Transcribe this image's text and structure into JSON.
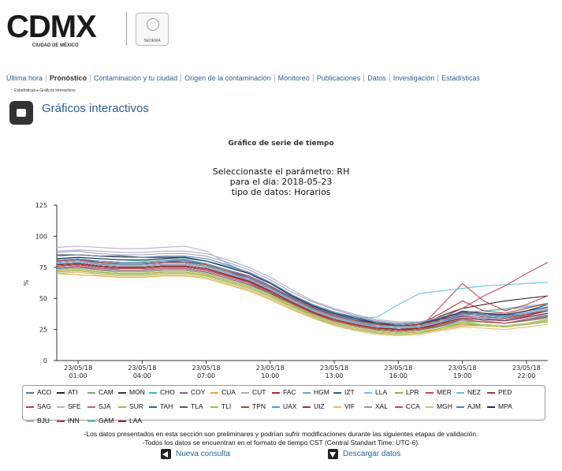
{
  "header": {
    "logo_bold": "CDMX",
    "logo_sub": "CIUDAD DE MÉXICO",
    "seal_label": "SEDEMA"
  },
  "nav": {
    "items": [
      "Última hora",
      "Pronóstico",
      "Contaminación y tu ciudad",
      "Origen de la contaminación",
      "Monitoreo",
      "Publicaciones",
      "Datos",
      "Investigación",
      "Estadísticas"
    ],
    "active_index": 1
  },
  "breadcrumb": ":: Estadísticas ▸ Gráficos interactivos",
  "page_title": "Gráficos interactivos",
  "subheading": "Gráfico de serie de tiempo",
  "chart_data": {
    "type": "line",
    "title_lines": [
      "Seleccionaste el parámetro: RH",
      "para el día: 2018-05-23",
      "tipo de datos: Horarios"
    ],
    "ylabel": "%",
    "ylim": [
      0,
      125
    ],
    "yticks": [
      0,
      25,
      50,
      75,
      100,
      125
    ],
    "xlim": [
      0,
      23
    ],
    "xticks": [
      {
        "hour": 1,
        "date": "23/05/18",
        "time": "01:00"
      },
      {
        "hour": 4,
        "date": "23/05/18",
        "time": "04:00"
      },
      {
        "hour": 7,
        "date": "23/05/18",
        "time": "07:00"
      },
      {
        "hour": 10,
        "date": "23/05/18",
        "time": "10:00"
      },
      {
        "hour": 13,
        "date": "23/05/18",
        "time": "13:00"
      },
      {
        "hour": 16,
        "date": "23/05/18",
        "time": "16:00"
      },
      {
        "hour": 19,
        "date": "23/05/18",
        "time": "19:00"
      },
      {
        "hour": 22,
        "date": "23/05/18",
        "time": "22:00"
      }
    ],
    "x": [
      0,
      1,
      2,
      3,
      4,
      5,
      6,
      7,
      8,
      9,
      10,
      11,
      12,
      13,
      14,
      15,
      16,
      17,
      18,
      19,
      20,
      21,
      22,
      23
    ],
    "series": [
      {
        "name": "ACO",
        "color": "#4d79b0",
        "values": [
          76,
          77,
          75,
          74,
          74,
          75,
          75,
          73,
          68,
          64,
          57,
          48,
          40,
          34,
          30,
          27,
          25,
          26,
          30,
          34,
          33,
          33,
          35,
          38
        ]
      },
      {
        "name": "ATI",
        "color": "#222222",
        "values": [
          85,
          85,
          84,
          84,
          83,
          83,
          83,
          80,
          75,
          70,
          62,
          52,
          44,
          38,
          33,
          29,
          27,
          28,
          36,
          42,
          45,
          48,
          50,
          52
        ]
      },
      {
        "name": "CAM",
        "color": "#6fb36a",
        "values": [
          72,
          73,
          71,
          70,
          70,
          71,
          71,
          69,
          64,
          59,
          52,
          44,
          37,
          32,
          28,
          25,
          24,
          25,
          28,
          31,
          31,
          30,
          32,
          34
        ]
      },
      {
        "name": "MON",
        "color": "#2b2f6e",
        "values": [
          80,
          81,
          79,
          78,
          78,
          79,
          80,
          77,
          72,
          66,
          58,
          49,
          41,
          35,
          31,
          27,
          25,
          26,
          33,
          40,
          38,
          36,
          40,
          45
        ]
      },
      {
        "name": "CHO",
        "color": "#3fb8b8",
        "values": [
          82,
          83,
          82,
          81,
          80,
          81,
          82,
          80,
          76,
          71,
          63,
          53,
          45,
          39,
          34,
          31,
          29,
          30,
          35,
          39,
          40,
          41,
          43,
          45
        ]
      },
      {
        "name": "COY",
        "color": "#8a5fb5",
        "values": [
          79,
          80,
          78,
          77,
          77,
          78,
          78,
          76,
          71,
          65,
          57,
          48,
          40,
          34,
          30,
          27,
          26,
          27,
          31,
          36,
          34,
          33,
          35,
          38
        ]
      },
      {
        "name": "CUA",
        "color": "#f0a040",
        "values": [
          70,
          69,
          68,
          67,
          67,
          68,
          68,
          66,
          61,
          56,
          49,
          41,
          34,
          29,
          25,
          22,
          21,
          22,
          25,
          28,
          28,
          27,
          29,
          31
        ]
      },
      {
        "name": "CUT",
        "color": "#a0b0c0",
        "values": [
          88,
          89,
          88,
          87,
          87,
          88,
          88,
          86,
          81,
          75,
          67,
          57,
          48,
          42,
          37,
          33,
          31,
          31,
          34,
          38,
          40,
          42,
          44,
          46
        ]
      },
      {
        "name": "FAC",
        "color": "#b03030",
        "values": [
          78,
          79,
          77,
          77,
          77,
          78,
          78,
          76,
          71,
          66,
          58,
          49,
          41,
          35,
          31,
          28,
          27,
          29,
          38,
          48,
          40,
          38,
          42,
          46
        ]
      },
      {
        "name": "HGM",
        "color": "#7aa0c8",
        "values": [
          75,
          76,
          74,
          74,
          74,
          75,
          75,
          73,
          68,
          63,
          56,
          47,
          39,
          33,
          29,
          26,
          25,
          26,
          30,
          34,
          33,
          32,
          34,
          37
        ]
      },
      {
        "name": "IZT",
        "color": "#2f5f90",
        "values": [
          77,
          78,
          76,
          75,
          75,
          76,
          76,
          74,
          69,
          64,
          56,
          47,
          39,
          33,
          29,
          26,
          25,
          26,
          31,
          37,
          36,
          35,
          38,
          41
        ]
      },
      {
        "name": "LLA",
        "color": "#8ab0d8",
        "values": [
          74,
          75,
          74,
          73,
          73,
          74,
          74,
          72,
          67,
          62,
          55,
          46,
          38,
          32,
          28,
          25,
          24,
          24,
          28,
          32,
          31,
          30,
          32,
          35
        ]
      },
      {
        "name": "LPR",
        "color": "#9ab040",
        "values": [
          73,
          74,
          72,
          71,
          71,
          72,
          72,
          70,
          65,
          60,
          53,
          45,
          37,
          31,
          27,
          24,
          23,
          24,
          27,
          30,
          29,
          28,
          30,
          33
        ]
      },
      {
        "name": "MER",
        "color": "#c04848",
        "values": [
          76,
          77,
          75,
          74,
          74,
          75,
          75,
          73,
          68,
          63,
          55,
          46,
          38,
          32,
          28,
          25,
          24,
          26,
          44,
          62,
          48,
          40,
          45,
          52
        ]
      },
      {
        "name": "NEZ",
        "color": "#60c0e0",
        "values": [
          79,
          80,
          79,
          78,
          78,
          79,
          79,
          77,
          72,
          67,
          59,
          50,
          42,
          37,
          34,
          35,
          45,
          54,
          56,
          58,
          60,
          61,
          62,
          63
        ]
      },
      {
        "name": "PED",
        "color": "#a03838",
        "values": [
          77,
          78,
          76,
          75,
          75,
          76,
          76,
          74,
          69,
          64,
          56,
          47,
          39,
          33,
          29,
          26,
          25,
          26,
          30,
          35,
          34,
          33,
          36,
          40
        ]
      },
      {
        "name": "SAG",
        "color": "#c03c5c",
        "values": [
          76,
          77,
          75,
          74,
          74,
          75,
          75,
          73,
          68,
          63,
          55,
          46,
          38,
          33,
          29,
          26,
          25,
          27,
          34,
          42,
          52,
          60,
          70,
          79
        ]
      },
      {
        "name": "SFE",
        "color": "#b8a8d8",
        "values": [
          91,
          92,
          91,
          90,
          90,
          91,
          92,
          88,
          78,
          70,
          60,
          51,
          43,
          37,
          32,
          29,
          27,
          27,
          30,
          33,
          33,
          32,
          34,
          36
        ]
      },
      {
        "name": "SJA",
        "color": "#c86080",
        "values": [
          75,
          76,
          74,
          73,
          73,
          74,
          74,
          72,
          67,
          62,
          54,
          45,
          37,
          31,
          27,
          24,
          23,
          24,
          29,
          36,
          32,
          30,
          33,
          36
        ]
      },
      {
        "name": "SUR",
        "color": "#b8b040",
        "values": [
          72,
          73,
          71,
          70,
          70,
          71,
          71,
          69,
          64,
          59,
          52,
          44,
          36,
          30,
          26,
          23,
          22,
          23,
          26,
          29,
          28,
          27,
          29,
          32
        ]
      },
      {
        "name": "TAH",
        "color": "#3a5898",
        "values": [
          80,
          81,
          80,
          79,
          79,
          80,
          81,
          78,
          73,
          68,
          60,
          51,
          43,
          37,
          33,
          30,
          29,
          30,
          34,
          38,
          37,
          36,
          38,
          41
        ]
      },
      {
        "name": "TLA",
        "color": "#506070",
        "values": [
          74,
          75,
          73,
          72,
          72,
          73,
          73,
          71,
          66,
          61,
          54,
          45,
          37,
          31,
          27,
          24,
          23,
          24,
          28,
          33,
          31,
          30,
          33,
          36
        ]
      },
      {
        "name": "TLI",
        "color": "#88c848",
        "values": [
          71,
          72,
          70,
          69,
          69,
          70,
          70,
          68,
          63,
          58,
          51,
          43,
          35,
          29,
          25,
          22,
          21,
          22,
          26,
          30,
          28,
          27,
          29,
          31
        ]
      },
      {
        "name": "TPN",
        "color": "#9a4a3a",
        "values": [
          78,
          79,
          77,
          76,
          76,
          77,
          77,
          75,
          70,
          65,
          57,
          48,
          40,
          34,
          30,
          27,
          26,
          27,
          32,
          38,
          35,
          34,
          37,
          41
        ]
      },
      {
        "name": "UAX",
        "color": "#4aa0c8",
        "values": [
          81,
          82,
          80,
          79,
          79,
          80,
          80,
          78,
          73,
          67,
          59,
          50,
          42,
          36,
          32,
          29,
          28,
          29,
          33,
          37,
          36,
          35,
          38,
          41
        ]
      },
      {
        "name": "UIZ",
        "color": "#8a2a6a",
        "values": [
          77,
          78,
          76,
          75,
          75,
          76,
          76,
          74,
          69,
          63,
          55,
          46,
          38,
          32,
          28,
          25,
          24,
          25,
          30,
          36,
          34,
          33,
          36,
          40
        ]
      },
      {
        "name": "VIF",
        "color": "#e8b870",
        "values": [
          70,
          71,
          69,
          68,
          68,
          69,
          69,
          67,
          62,
          57,
          50,
          42,
          34,
          28,
          24,
          21,
          20,
          21,
          24,
          27,
          26,
          25,
          27,
          29
        ]
      },
      {
        "name": "XAL",
        "color": "#9a9aa8",
        "values": [
          87,
          88,
          86,
          85,
          85,
          86,
          86,
          84,
          79,
          73,
          65,
          55,
          47,
          41,
          36,
          32,
          30,
          31,
          35,
          39,
          38,
          37,
          39,
          42
        ]
      },
      {
        "name": "CCA",
        "color": "#b85048",
        "values": [
          76,
          77,
          75,
          74,
          74,
          75,
          75,
          73,
          68,
          63,
          55,
          46,
          38,
          32,
          28,
          25,
          24,
          25,
          29,
          33,
          31,
          30,
          32,
          35
        ]
      },
      {
        "name": "MGH",
        "color": "#b8c870",
        "values": [
          73,
          74,
          72,
          71,
          71,
          72,
          72,
          70,
          65,
          60,
          53,
          45,
          37,
          31,
          27,
          24,
          23,
          24,
          27,
          31,
          29,
          28,
          30,
          32
        ]
      },
      {
        "name": "AJM",
        "color": "#5a7ab8",
        "values": [
          84,
          85,
          84,
          83,
          83,
          84,
          84,
          82,
          77,
          71,
          63,
          53,
          45,
          39,
          35,
          31,
          29,
          30,
          34,
          38,
          37,
          36,
          38,
          41
        ]
      },
      {
        "name": "MPA",
        "color": "#1a2a4a",
        "values": [
          82,
          83,
          82,
          81,
          81,
          82,
          83,
          80,
          75,
          70,
          62,
          52,
          44,
          38,
          34,
          30,
          28,
          29,
          34,
          39,
          38,
          37,
          40,
          43
        ]
      },
      {
        "name": "BJU",
        "color": "#98b8e0",
        "values": [
          78,
          79,
          77,
          76,
          76,
          77,
          77,
          75,
          70,
          65,
          57,
          48,
          40,
          34,
          30,
          27,
          26,
          27,
          31,
          35,
          34,
          33,
          35,
          38
        ]
      },
      {
        "name": "INN",
        "color": "#c03838",
        "values": [
          80,
          81,
          79,
          78,
          78,
          79,
          79,
          77,
          72,
          67,
          59,
          50,
          42,
          36,
          32,
          29,
          28,
          29,
          33,
          37,
          36,
          35,
          37,
          40
        ]
      },
      {
        "name": "GAM",
        "color": "#58c0c8",
        "values": [
          78,
          79,
          77,
          77,
          77,
          78,
          78,
          76,
          71,
          66,
          58,
          49,
          41,
          35,
          31,
          28,
          27,
          28,
          32,
          37,
          36,
          35,
          38,
          41
        ]
      },
      {
        "name": "LAA",
        "color": "#a02020",
        "values": [
          77,
          78,
          76,
          75,
          75,
          76,
          76,
          74,
          69,
          64,
          56,
          47,
          39,
          33,
          29,
          26,
          25,
          26,
          30,
          34,
          33,
          32,
          35,
          38
        ]
      }
    ]
  },
  "footer": {
    "line1": "-Los datos presentados en esta sección son preliminares y podrían sufrir modificaciones durante las siguientes etapas de validación.",
    "line2": "-Todos los datos se encuentran en el formato de tiempo CST (Central Standart Time: UTC-6)."
  },
  "actions": {
    "new_query": "Nueva consulta",
    "download": "Descargar datos"
  }
}
